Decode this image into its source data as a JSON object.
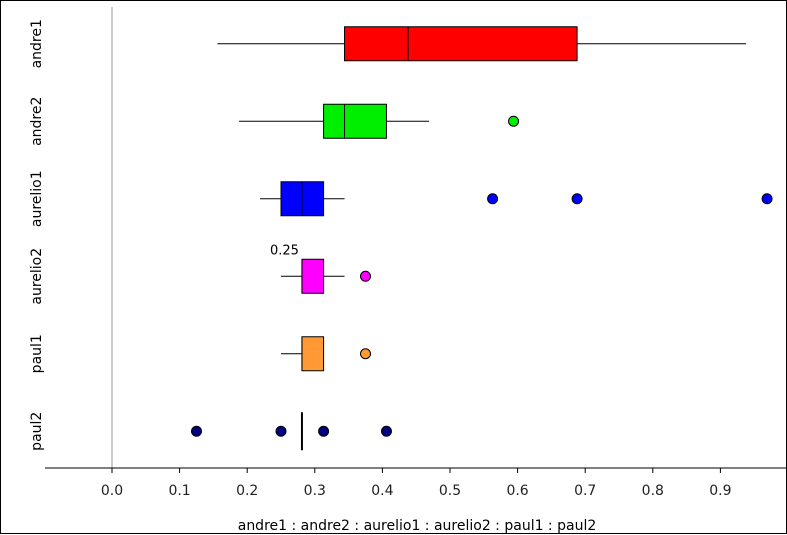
{
  "chart_data": {
    "type": "boxplot",
    "orientation": "horizontal",
    "xlabel": "andre1 : andre2 : aurelio1 : aurelio2 : paul1 : paul2",
    "xlim": [
      -0.1,
      0.99
    ],
    "xticks": [
      0.0,
      0.1,
      0.2,
      0.3,
      0.4,
      0.5,
      0.6,
      0.7,
      0.8,
      0.9
    ],
    "xtick_labels": [
      "0.0",
      "0.1",
      "0.2",
      "0.3",
      "0.4",
      "0.5",
      "0.6",
      "0.7",
      "0.8",
      "0.9"
    ],
    "grid": false,
    "annotation": {
      "text": "0.25",
      "series": "aurelio2",
      "value": 0.25
    },
    "series": [
      {
        "name": "andre1",
        "color": "#ff0000",
        "whisker_low": 0.156,
        "q1": 0.344,
        "median": 0.438,
        "q3": 0.688,
        "whisker_high": 0.938,
        "outliers": []
      },
      {
        "name": "andre2",
        "color": "#00ee00",
        "whisker_low": 0.188,
        "q1": 0.313,
        "median": 0.344,
        "q3": 0.406,
        "whisker_high": 0.469,
        "outliers": [
          0.594
        ]
      },
      {
        "name": "aurelio1",
        "color": "#0000ff",
        "whisker_low": 0.219,
        "q1": 0.25,
        "median": 0.281,
        "q3": 0.313,
        "whisker_high": 0.344,
        "outliers": [
          0.563,
          0.688,
          0.969
        ]
      },
      {
        "name": "aurelio2",
        "color": "#ff00ff",
        "whisker_low": 0.25,
        "q1": 0.281,
        "median": 0.281,
        "q3": 0.313,
        "whisker_high": 0.344,
        "outliers": [
          0.375
        ]
      },
      {
        "name": "paul1",
        "color": "#ff9933",
        "whisker_low": 0.25,
        "q1": 0.281,
        "median": 0.281,
        "q3": 0.313,
        "whisker_high": 0.313,
        "outliers": [
          0.375
        ]
      },
      {
        "name": "paul2",
        "color": "#000080",
        "whisker_low": 0.281,
        "q1": 0.281,
        "median": 0.281,
        "q3": 0.281,
        "whisker_high": 0.281,
        "outliers": [
          0.125,
          0.25,
          0.313,
          0.406
        ]
      }
    ]
  }
}
